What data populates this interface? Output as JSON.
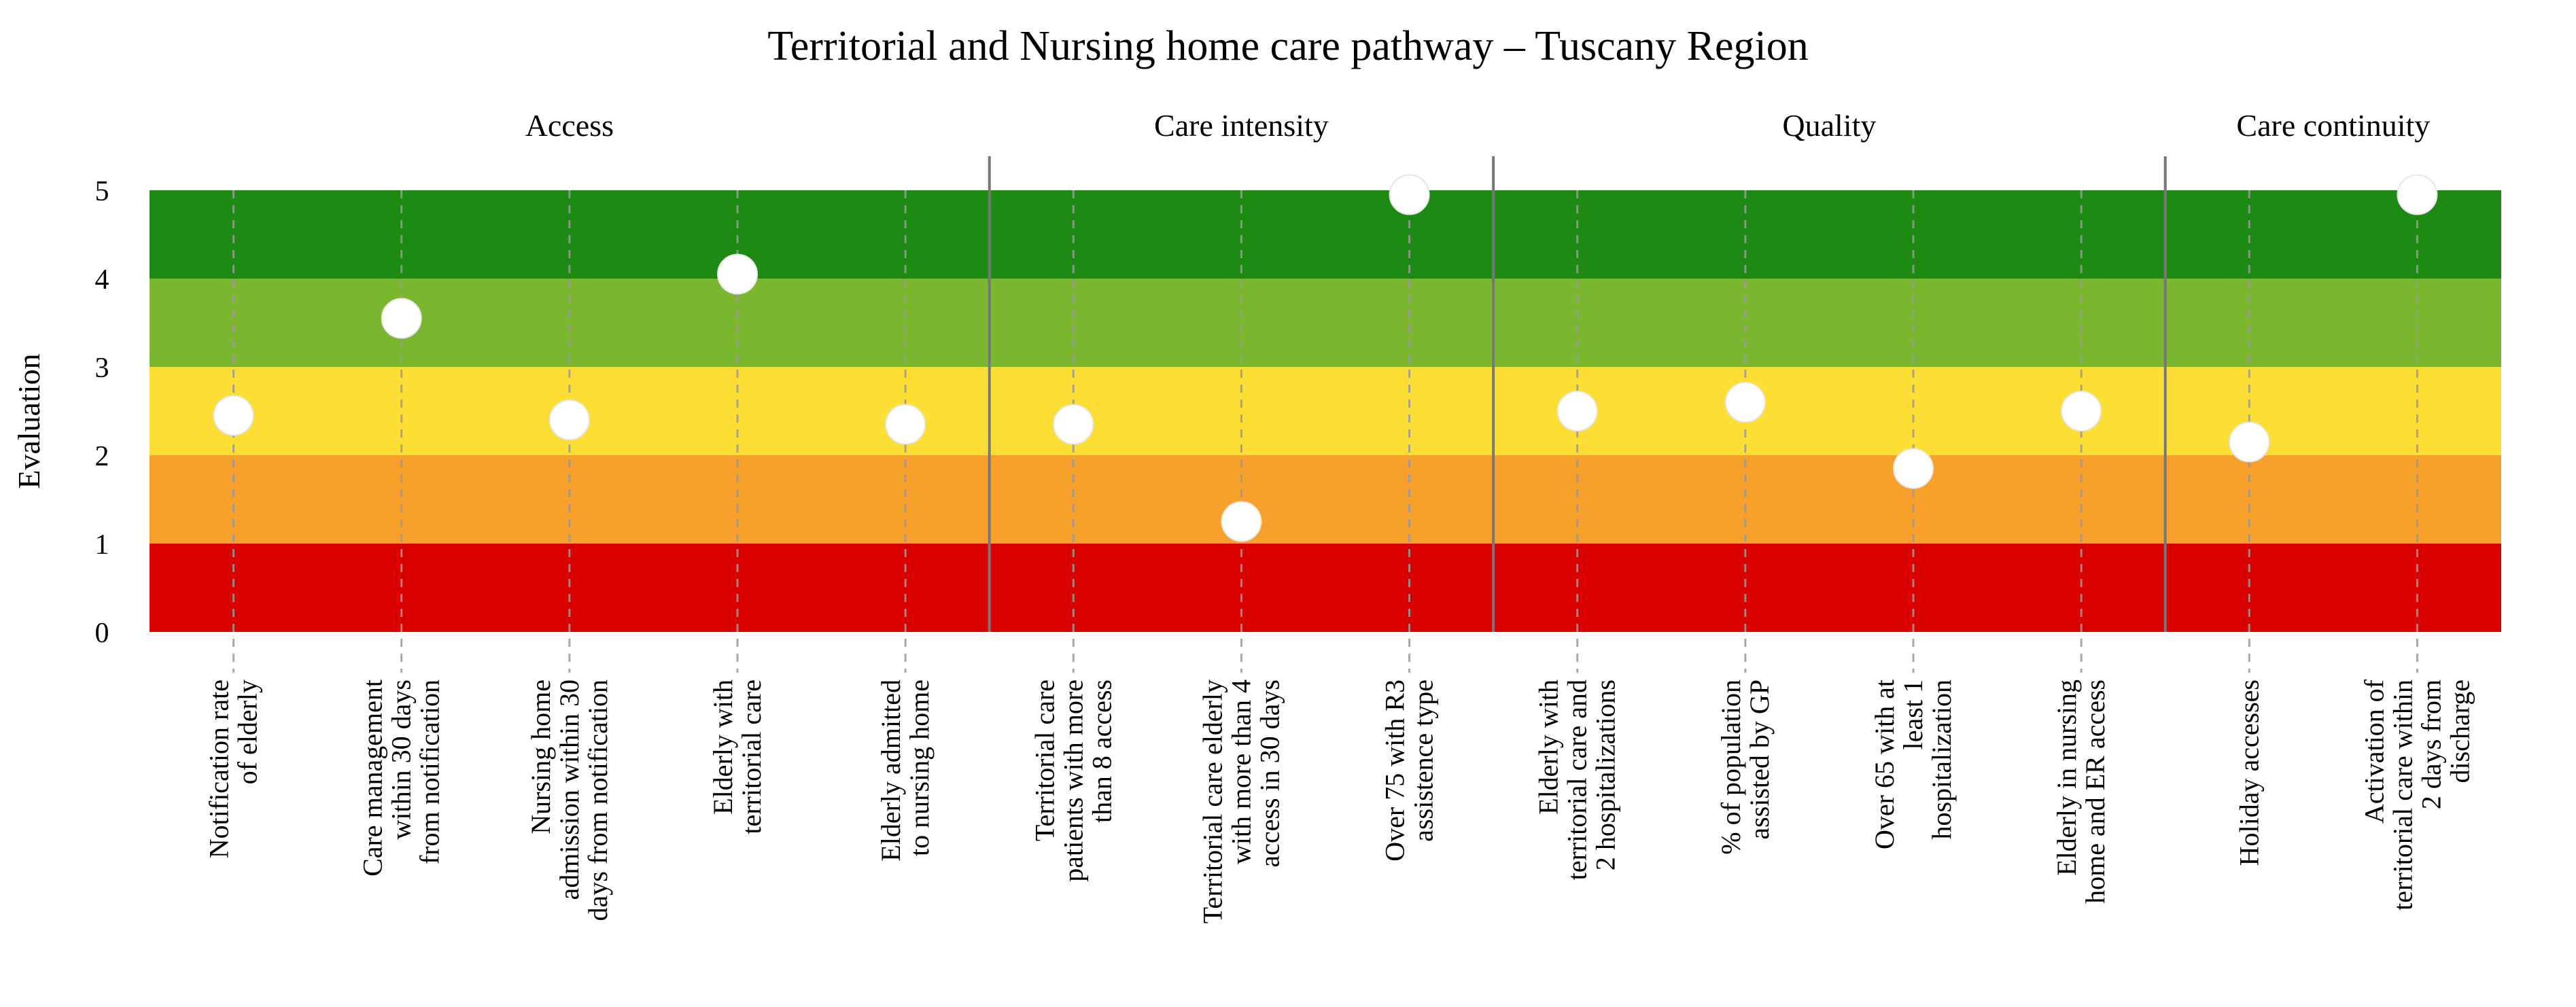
{
  "chart_data": {
    "type": "scatter",
    "title": "Territorial and Nursing home care pathway – Tuscany Region",
    "xlabel": "",
    "ylabel": "Evaluation",
    "ylim": [
      0,
      5
    ],
    "yticks": [
      "0",
      "1",
      "2",
      "3",
      "4",
      "5"
    ],
    "grid": true,
    "legend": "none",
    "groups": [
      {
        "name": "Access",
        "start": 0,
        "end": 4
      },
      {
        "name": "Care intensity",
        "start": 5,
        "end": 7
      },
      {
        "name": "Quality",
        "start": 8,
        "end": 11
      },
      {
        "name": "Care continuity",
        "start": 12,
        "end": 13
      }
    ],
    "bands": [
      {
        "from": 0,
        "to": 1,
        "color": "#d90000"
      },
      {
        "from": 1,
        "to": 2,
        "color": "#f7a02c"
      },
      {
        "from": 2,
        "to": 3,
        "color": "#fdde35"
      },
      {
        "from": 3,
        "to": 4,
        "color": "#7ab72f"
      },
      {
        "from": 4,
        "to": 5,
        "color": "#1d8a14"
      }
    ],
    "categories": [
      [
        "Notification rate",
        "of elderly"
      ],
      [
        "Care management",
        "within 30 days",
        "from notification"
      ],
      [
        "Nursing home",
        "admission within 30",
        "days from notification"
      ],
      [
        "Elderly with",
        "territorial care"
      ],
      [
        "Elderly admitted",
        "to nursing home"
      ],
      [
        "Territorial care",
        "patients with more",
        "than 8 access"
      ],
      [
        "Territorial care elderly",
        "with more than 4",
        "access in 30 days"
      ],
      [
        "Over 75 with R3",
        "assistence type"
      ],
      [
        "Elderly with",
        "territorial care and",
        "2 hospitalizations"
      ],
      [
        "% of population",
        "assisted by GP"
      ],
      [
        "Over 65 with at",
        "least 1",
        "hospitalization"
      ],
      [
        "Elderly in nursing",
        "home and ER access"
      ],
      [
        "Holiday accesses"
      ],
      [
        "Activation of",
        "territorial care within",
        "2 days from",
        "discharge"
      ]
    ],
    "values": [
      2.45,
      3.55,
      2.4,
      4.05,
      2.35,
      2.35,
      1.25,
      4.95,
      2.5,
      2.6,
      1.85,
      2.5,
      2.15,
      4.95
    ],
    "marker_color": "#ffffff"
  }
}
